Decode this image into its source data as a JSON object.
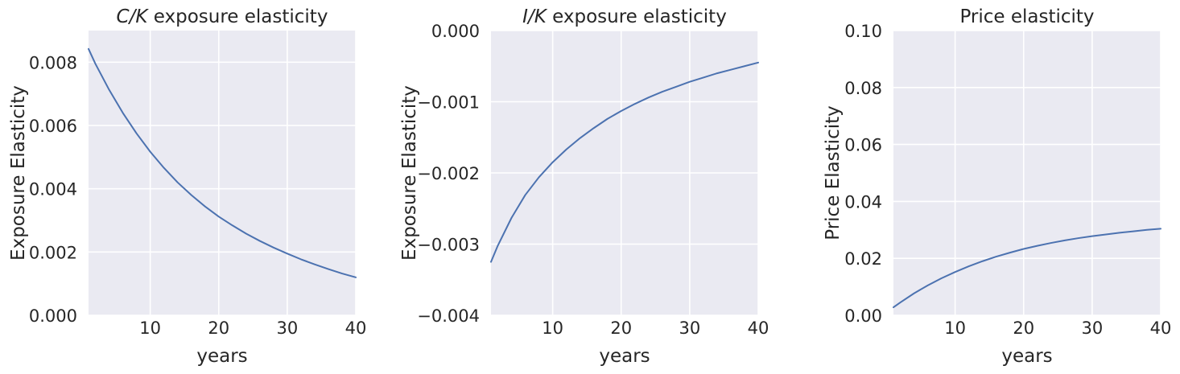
{
  "colors": {
    "background": "#ffffff",
    "plot_background": "#eaeaf2",
    "grid": "#ffffff",
    "line": "#4c72b0",
    "text": "#262626"
  },
  "chart_data": [
    {
      "type": "line",
      "title": "C/K exposure elasticity",
      "title_italic": "C/K",
      "title_rest": " exposure elasticity",
      "xlabel": "years",
      "ylabel": "Exposure Elasticity",
      "xlim": [
        1,
        40
      ],
      "ylim": [
        0,
        0.009
      ],
      "xticks": [
        10,
        20,
        30,
        40
      ],
      "xtick_labels": [
        "10",
        "20",
        "30",
        "40"
      ],
      "yticks": [
        0,
        0.002,
        0.004,
        0.006,
        0.008
      ],
      "ytick_labels": [
        "0.000",
        "0.002",
        "0.004",
        "0.006",
        "0.008"
      ],
      "grid": true,
      "series": [
        {
          "x": [
            1,
            2,
            4,
            6,
            8,
            10,
            12,
            14,
            16,
            18,
            20,
            22,
            24,
            26,
            28,
            30,
            32,
            34,
            36,
            38,
            40
          ],
          "y": [
            0.00842,
            0.00795,
            0.00713,
            0.0064,
            0.00575,
            0.00517,
            0.00466,
            0.0042,
            0.0038,
            0.00344,
            0.00312,
            0.00284,
            0.00258,
            0.00235,
            0.00214,
            0.00195,
            0.00177,
            0.00161,
            0.00146,
            0.00132,
            0.0012
          ]
        }
      ]
    },
    {
      "type": "line",
      "title": "I/K exposure elasticity",
      "title_italic": "I/K",
      "title_rest": " exposure elasticity",
      "xlabel": "years",
      "ylabel": "Exposure Elasticity",
      "xlim": [
        1,
        40
      ],
      "ylim": [
        -0.004,
        0
      ],
      "xticks": [
        10,
        20,
        30,
        40
      ],
      "xtick_labels": [
        "10",
        "20",
        "30",
        "40"
      ],
      "yticks": [
        -0.004,
        -0.003,
        -0.002,
        -0.001,
        0
      ],
      "ytick_labels": [
        "−0.004",
        "−0.003",
        "−0.002",
        "−0.001",
        "0.000"
      ],
      "grid": true,
      "series": [
        {
          "x": [
            1,
            2,
            4,
            6,
            8,
            10,
            12,
            14,
            16,
            18,
            20,
            22,
            24,
            26,
            28,
            30,
            32,
            34,
            36,
            38,
            40
          ],
          "y": [
            -0.00325,
            -0.00302,
            -0.00263,
            -0.00231,
            -0.00206,
            -0.00185,
            -0.00167,
            -0.00151,
            -0.00137,
            -0.00124,
            -0.00113,
            -0.00103,
            -0.00094,
            -0.00086,
            -0.00079,
            -0.00072,
            -0.00066,
            -0.0006,
            -0.00055,
            -0.0005,
            -0.00045
          ]
        }
      ]
    },
    {
      "type": "line",
      "title": "Price elasticity",
      "xlabel": "years",
      "ylabel": "Price Elasticity",
      "xlim": [
        1,
        40
      ],
      "ylim": [
        0,
        0.1
      ],
      "xticks": [
        10,
        20,
        30,
        40
      ],
      "xtick_labels": [
        "10",
        "20",
        "30",
        "40"
      ],
      "yticks": [
        0,
        0.02,
        0.04,
        0.06,
        0.08,
        0.1
      ],
      "ytick_labels": [
        "0.00",
        "0.02",
        "0.04",
        "0.06",
        "0.08",
        "0.10"
      ],
      "grid": true,
      "series": [
        {
          "x": [
            1,
            2,
            4,
            6,
            8,
            10,
            12,
            14,
            16,
            18,
            20,
            22,
            24,
            26,
            28,
            30,
            32,
            34,
            36,
            38,
            40
          ],
          "y": [
            0.0028,
            0.0045,
            0.0077,
            0.0105,
            0.013,
            0.0152,
            0.0172,
            0.019,
            0.0206,
            0.022,
            0.0233,
            0.0244,
            0.0254,
            0.0263,
            0.0271,
            0.0278,
            0.0284,
            0.029,
            0.0295,
            0.03,
            0.0304
          ]
        }
      ]
    }
  ]
}
